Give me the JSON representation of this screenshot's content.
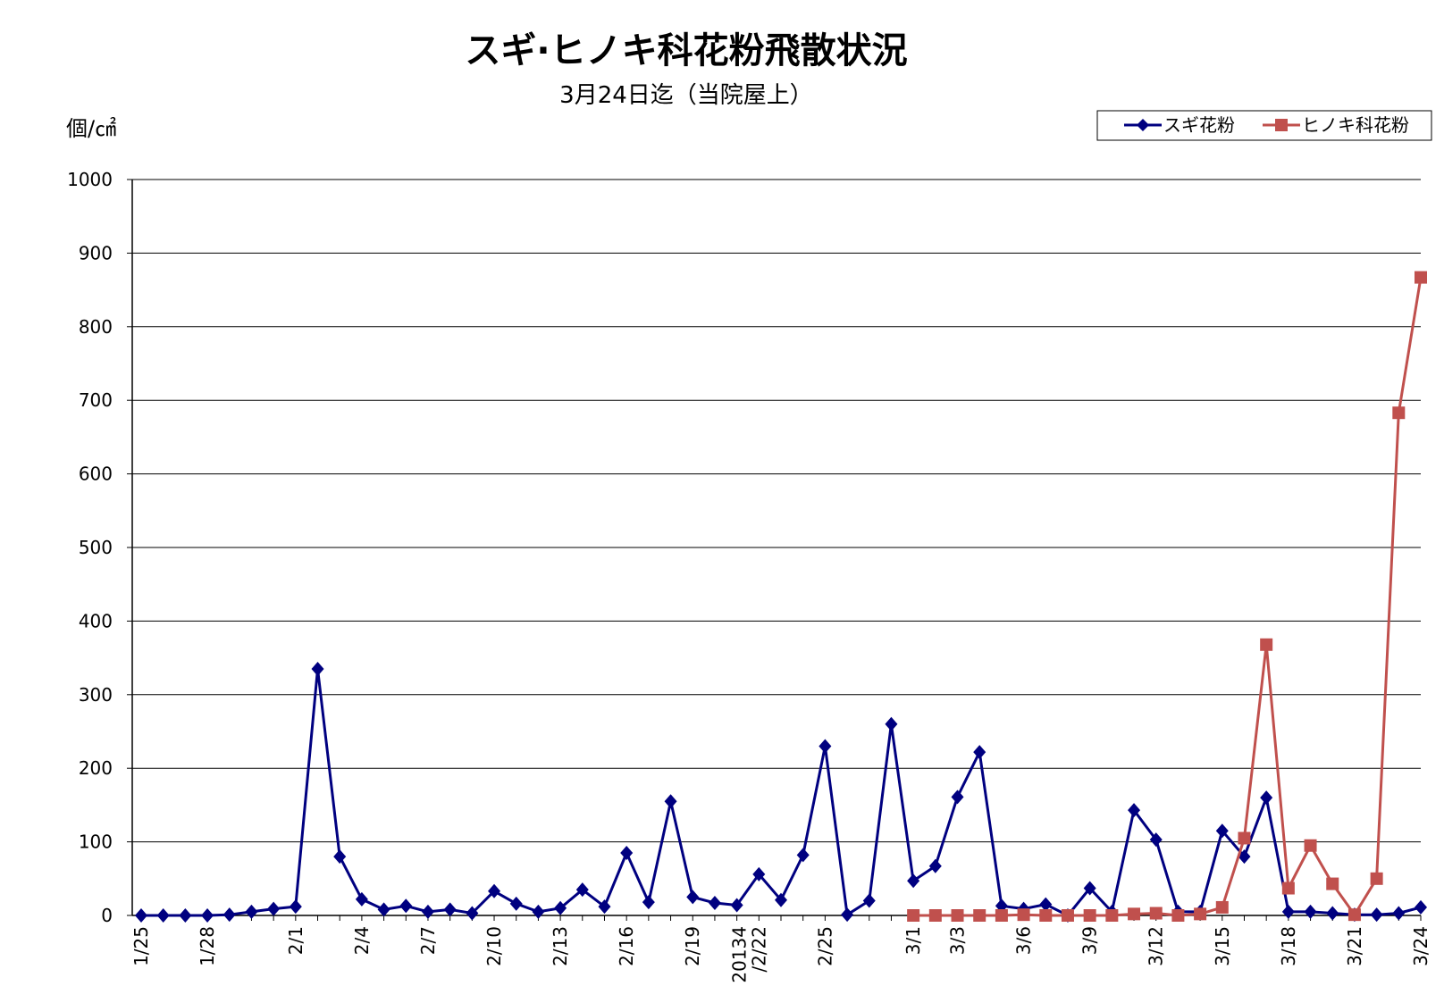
{
  "chart_data": {
    "type": "line",
    "title": "スギ·ヒノキ科花粉飛散状況",
    "subtitle": "3月24日迄（当院屋上）",
    "ylabel": "個/㎠",
    "xlabel": "",
    "ylim": [
      0,
      1000
    ],
    "yticks": [
      0,
      100,
      200,
      300,
      400,
      500,
      600,
      700,
      800,
      900,
      1000
    ],
    "grid": true,
    "legend_position": "top-right",
    "x_labels": [
      {
        "index": 0,
        "label": "1/25"
      },
      {
        "index": 3,
        "label": "1/28"
      },
      {
        "index": 7,
        "label": "2/1"
      },
      {
        "index": 10,
        "label": "2/4"
      },
      {
        "index": 13,
        "label": "2/7"
      },
      {
        "index": 16,
        "label": "2/10"
      },
      {
        "index": 19,
        "label": "2/13"
      },
      {
        "index": 22,
        "label": "2/16"
      },
      {
        "index": 25,
        "label": "2/19"
      },
      {
        "index": 28,
        "label": "20134\n/2/22"
      },
      {
        "index": 31,
        "label": "2/25"
      },
      {
        "index": 35,
        "label": "3/1"
      },
      {
        "index": 37,
        "label": "3/3"
      },
      {
        "index": 40,
        "label": "3/6"
      },
      {
        "index": 43,
        "label": "3/9"
      },
      {
        "index": 46,
        "label": "3/12"
      },
      {
        "index": 49,
        "label": "3/15"
      },
      {
        "index": 52,
        "label": "3/18"
      },
      {
        "index": 55,
        "label": "3/21"
      },
      {
        "index": 58,
        "label": "3/24"
      }
    ],
    "n_points": 59,
    "series": [
      {
        "name": "スギ花粉",
        "color": "#000080",
        "marker": "diamond",
        "start_index": 0,
        "values": [
          0,
          0,
          0,
          0,
          1,
          5,
          9,
          12,
          335,
          80,
          22,
          8,
          13,
          5,
          8,
          3,
          33,
          16,
          5,
          10,
          35,
          12,
          85,
          18,
          155,
          25,
          17,
          14,
          56,
          21,
          82,
          230,
          1,
          20,
          260,
          47,
          67,
          161,
          222,
          13,
          9,
          15,
          0,
          37,
          5,
          143,
          103,
          5,
          5,
          115,
          80,
          160,
          5,
          5,
          3,
          1,
          1,
          3,
          11
        ]
      },
      {
        "name": "ヒノキ科花粉",
        "color": "#C0504D",
        "marker": "square",
        "start_index": 35,
        "values": [
          0,
          0,
          0,
          0,
          0,
          1,
          0,
          0,
          0,
          0,
          2,
          3,
          0,
          2,
          11,
          105,
          368,
          37,
          95,
          43,
          1,
          50,
          683,
          867
        ]
      }
    ]
  }
}
